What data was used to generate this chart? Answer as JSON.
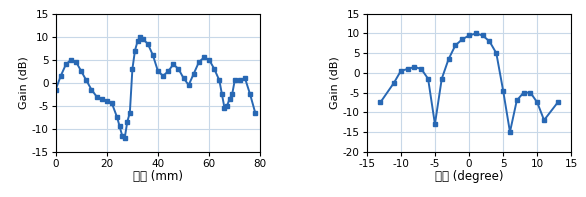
{
  "left": {
    "x": [
      0,
      2,
      4,
      6,
      8,
      10,
      12,
      14,
      16,
      18,
      20,
      22,
      24,
      25,
      26,
      27,
      28,
      29,
      30,
      31,
      32,
      33,
      34,
      36,
      38,
      40,
      42,
      44,
      46,
      48,
      50,
      52,
      54,
      56,
      58,
      60,
      62,
      64,
      65,
      66,
      67,
      68,
      69,
      70,
      72,
      74,
      76,
      78
    ],
    "y": [
      -1.5,
      1.5,
      4.0,
      5.0,
      4.5,
      2.5,
      0.5,
      -1.5,
      -3.0,
      -3.5,
      -4.0,
      -4.5,
      -7.5,
      -9.5,
      -11.5,
      -12.0,
      -8.5,
      -6.5,
      3.0,
      7.0,
      9.0,
      10.0,
      9.5,
      8.5,
      6.0,
      2.5,
      1.5,
      2.5,
      4.0,
      3.0,
      1.0,
      -0.5,
      2.0,
      4.5,
      5.5,
      5.0,
      3.0,
      0.5,
      -2.5,
      -5.5,
      -5.0,
      -3.5,
      -2.5,
      0.5,
      0.5,
      1.0,
      -2.5,
      -6.5
    ],
    "xlabel": "거리 (mm)",
    "ylabel": "Gain (dB)",
    "xlim": [
      0,
      80
    ],
    "ylim": [
      -15,
      15
    ],
    "yticks": [
      -15,
      -10,
      -5,
      0,
      5,
      10,
      15
    ],
    "xticks": [
      0,
      20,
      40,
      60,
      80
    ]
  },
  "right": {
    "x": [
      -13,
      -11,
      -10,
      -9,
      -8,
      -7,
      -6,
      -5,
      -4,
      -3,
      -2,
      -1,
      0,
      1,
      2,
      3,
      4,
      5,
      6,
      7,
      8,
      9,
      10,
      11,
      13
    ],
    "y": [
      -7.5,
      -2.5,
      0.5,
      1.0,
      1.5,
      1.0,
      -1.5,
      -13.0,
      -1.5,
      3.5,
      7.0,
      8.5,
      9.5,
      10.0,
      9.5,
      8.0,
      5.0,
      -4.5,
      -15.0,
      -7.0,
      -5.0,
      -5.0,
      -7.5,
      -12.0,
      -7.5
    ],
    "xlabel": "각도 (degree)",
    "ylabel": "Gain (dB)",
    "xlim": [
      -15,
      15
    ],
    "ylim": [
      -20,
      15
    ],
    "yticks": [
      -20,
      -15,
      -10,
      -5,
      0,
      5,
      10,
      15
    ],
    "xticks": [
      -15,
      -10,
      -5,
      0,
      5,
      10,
      15
    ]
  },
  "line_color": "#2868b4",
  "marker": "s",
  "markersize": 3.0,
  "linewidth": 1.4,
  "grid_color": "#c8d8e8",
  "bg_color": "#ffffff"
}
